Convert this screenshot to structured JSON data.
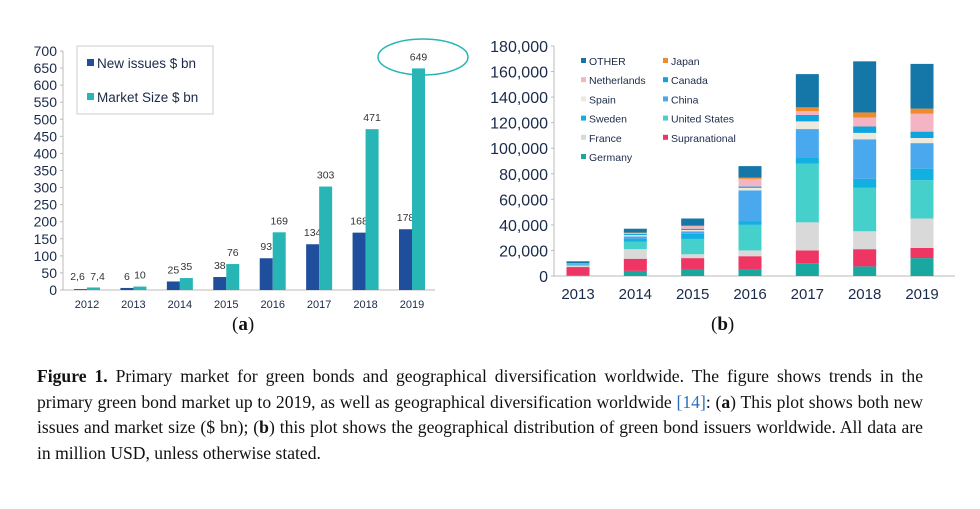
{
  "chart_data": [
    {
      "type": "bar",
      "panel_label": "a",
      "categories": [
        "2012",
        "2013",
        "2014",
        "2015",
        "2016",
        "2017",
        "2018",
        "2019"
      ],
      "series": [
        {
          "name": "New issues $ bn",
          "color": "#1f4e9c",
          "values": [
            2.6,
            6,
            25,
            38,
            93,
            134,
            168,
            178
          ],
          "labels": [
            "2,6",
            "6",
            "25",
            "38",
            "93",
            "134",
            "168",
            "178"
          ]
        },
        {
          "name": "Market Size $ bn",
          "color": "#27b5b5",
          "values": [
            7.4,
            10,
            35,
            76,
            169,
            303,
            471,
            649
          ],
          "labels": [
            "7,4",
            "10",
            "35",
            "76",
            "169",
            "303",
            "471",
            "649"
          ]
        }
      ],
      "ylim": [
        0,
        700
      ],
      "yticks": [
        "0",
        "50",
        "100",
        "150",
        "200",
        "250",
        "300",
        "350",
        "400",
        "450",
        "500",
        "550",
        "600",
        "650",
        "700"
      ],
      "legend": "top-left",
      "annotation": "ellipse around 2019 market size label (649)",
      "grid": false
    },
    {
      "type": "stacked-bar",
      "panel_label": "b",
      "categories": [
        "2013",
        "2014",
        "2015",
        "2016",
        "2017",
        "2018",
        "2019"
      ],
      "series": [
        {
          "name": "Germany",
          "color": "#19a8a0",
          "values": [
            500,
            4000,
            5500,
            5000,
            10000,
            7500,
            14000
          ]
        },
        {
          "name": "Supranational",
          "color": "#ee3563",
          "values": [
            6500,
            9500,
            8500,
            10500,
            10000,
            13500,
            8000
          ]
        },
        {
          "name": "France",
          "color": "#d9d9d9",
          "values": [
            1000,
            7500,
            3000,
            4500,
            22000,
            14000,
            23000
          ]
        },
        {
          "name": "United States",
          "color": "#45d0cc",
          "values": [
            500,
            6000,
            12000,
            20000,
            46000,
            34000,
            30000
          ]
        },
        {
          "name": "Sweden",
          "color": "#12b0e0",
          "values": [
            500,
            2000,
            4000,
            3000,
            5000,
            7000,
            9000
          ]
        },
        {
          "name": "China",
          "color": "#4aa8ee",
          "values": [
            300,
            2000,
            2000,
            24000,
            22000,
            31000,
            20000
          ]
        },
        {
          "name": "Spain",
          "color": "#ede9dc",
          "values": [
            200,
            1000,
            1000,
            2000,
            6000,
            5000,
            4000
          ]
        },
        {
          "name": "Canada",
          "color": "#10a4dc",
          "values": [
            300,
            1000,
            1000,
            1000,
            5000,
            5000,
            5000
          ]
        },
        {
          "name": "Netherlands",
          "color": "#f4b4c4",
          "values": [
            200,
            500,
            2000,
            6000,
            3000,
            7000,
            14000
          ]
        },
        {
          "name": "Japan",
          "color": "#f08a2a",
          "values": [
            0,
            500,
            500,
            1000,
            3000,
            4000,
            4000
          ]
        },
        {
          "name": "OTHER",
          "color": "#1477a8",
          "values": [
            1500,
            3000,
            5500,
            9000,
            26000,
            40000,
            35000
          ]
        }
      ],
      "legend_order": [
        "OTHER",
        "Japan",
        "Netherlands",
        "Canada",
        "Spain",
        "China",
        "Sweden",
        "United States",
        "France",
        "Supranational",
        "Germany"
      ],
      "ylim": [
        0,
        180000
      ],
      "yticks": [
        "0",
        "20,000",
        "40,000",
        "60,000",
        "80,000",
        "100,000",
        "120,000",
        "140,000",
        "160,000",
        "180,000"
      ],
      "legend": "top-left",
      "grid": false
    }
  ],
  "subfigure_labels": {
    "a": "a",
    "b": "b"
  },
  "caption": {
    "label": "Figure 1.",
    "text_1": " Primary market for green bonds and geographical diversification worldwide. The figure shows trends in the primary green bond market up to 2019, as well as geographical diversification worldwide ",
    "ref": "[14]",
    "text_2": ":  (",
    "a": "a",
    "text_3": ") This plot shows both new issues and market size ($ bn); (",
    "b": "b",
    "text_4": ") this plot shows the geographical distribution of green bond issuers worldwide. All data are in million USD, unless otherwise stated."
  }
}
